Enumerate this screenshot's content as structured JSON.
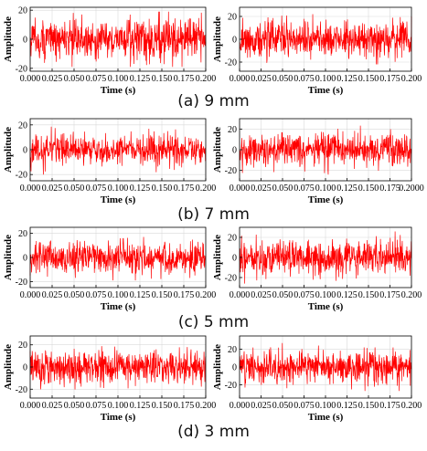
{
  "colors": {
    "signal": "#ff0000",
    "grid": "#d9d9d9",
    "axis": "#000000"
  },
  "rows": [
    {
      "caption": "(a) 9 mm",
      "panels": [
        {
          "ylabel": "Amplitude",
          "xlabel": "Time (s)",
          "y_ticks": [
            "20",
            "0",
            "-20"
          ],
          "x_ticks": [
            "0.000",
            "0.025",
            "0.050",
            "0.075",
            "0.100",
            "0.125",
            "0.150",
            "0.175",
            "0.200"
          ]
        },
        {
          "ylabel": "Amplitude",
          "xlabel": "Time (s)",
          "y_ticks": [
            "20",
            "0",
            "-20"
          ],
          "x_ticks": [
            "0.000",
            "0.025",
            "0.050",
            "0.075",
            "0.100",
            "0.125",
            "0.150",
            "0.175",
            "0.200"
          ]
        }
      ]
    },
    {
      "caption": "(b) 7 mm",
      "panels": [
        {
          "ylabel": "Amplitude",
          "xlabel": "Time (s)",
          "y_ticks": [
            "20",
            "0",
            "-20"
          ],
          "x_ticks": [
            "0.000",
            "0.025",
            "0.050",
            "0.075",
            "0.100",
            "0.125",
            "0.150",
            "0.175",
            "0.200"
          ]
        },
        {
          "ylabel": "Amplitude",
          "xlabel": "Time (s)",
          "y_ticks": [
            "20",
            "0",
            "-20"
          ],
          "x_ticks": [
            "0.000",
            "0.025",
            "0.050",
            "0.075",
            "0.100",
            "0.125",
            "0.150",
            "0.175",
            "0.2000"
          ]
        }
      ]
    },
    {
      "caption": "(c) 5 mm",
      "panels": [
        {
          "ylabel": "Amplitude",
          "xlabel": "Time (s)",
          "y_ticks": [
            "20",
            "0",
            "-20"
          ],
          "x_ticks": [
            "0.000",
            "0.025",
            "0.050",
            "0.075",
            "0.100",
            "0.125",
            "0.150",
            "0.175",
            "0.200"
          ]
        },
        {
          "ylabel": "Amplitude",
          "xlabel": "Time (s)",
          "y_ticks": [
            "20",
            "0",
            "-20"
          ],
          "x_ticks": [
            "0.000",
            "0.025",
            "0.050",
            "0.075",
            "0.100",
            "0.125",
            "0.150",
            "0.175",
            "0.200"
          ]
        }
      ]
    },
    {
      "caption": "(d) 3 mm",
      "panels": [
        {
          "ylabel": "Amplitude",
          "xlabel": "Time (s)",
          "y_ticks": [
            "20",
            "0",
            "-20"
          ],
          "x_ticks": [
            "0.000",
            "0.025",
            "0.050",
            "0.075",
            "0.100",
            "0.125",
            "0.150",
            "0.175",
            "0.200"
          ]
        },
        {
          "ylabel": "Amplitude",
          "xlabel": "Time (s)",
          "y_ticks": [
            "20",
            "0",
            "-20"
          ],
          "x_ticks": [
            "0.000",
            "0.025",
            "0.050",
            "0.075",
            "0.100",
            "0.125",
            "0.150",
            "0.175",
            "0.200"
          ]
        }
      ]
    }
  ],
  "chart_data": [
    {
      "type": "line",
      "panel": "(a) 9 mm left",
      "xlabel": "Time (s)",
      "ylabel": "Amplitude",
      "xlim": [
        0,
        0.2
      ],
      "ylim": [
        -22,
        22
      ],
      "grid": true,
      "signal": {
        "kind": "noise",
        "center": 0,
        "typical_amplitude": 7,
        "peak_amplitude": 19,
        "sample_count": 600
      }
    },
    {
      "type": "line",
      "panel": "(a) 9 mm right",
      "xlabel": "Time (s)",
      "ylabel": "Amplitude",
      "xlim": [
        0,
        0.2
      ],
      "ylim": [
        -28,
        28
      ],
      "grid": true,
      "signal": {
        "kind": "noise",
        "center": 0,
        "typical_amplitude": 8,
        "peak_amplitude": 22,
        "sample_count": 600
      }
    },
    {
      "type": "line",
      "panel": "(b) 7 mm left",
      "xlabel": "Time (s)",
      "ylabel": "Amplitude",
      "xlim": [
        0,
        0.2
      ],
      "ylim": [
        -25,
        25
      ],
      "grid": true,
      "signal": {
        "kind": "noise",
        "center": 0,
        "typical_amplitude": 6,
        "peak_amplitude": 20,
        "sample_count": 600
      }
    },
    {
      "type": "line",
      "panel": "(b) 7 mm right",
      "xlabel": "Time (s)",
      "ylabel": "Amplitude",
      "xlim": [
        0,
        0.2
      ],
      "ylim": [
        -30,
        30
      ],
      "grid": true,
      "signal": {
        "kind": "noise",
        "center": 0,
        "typical_amplitude": 8,
        "peak_amplitude": 24,
        "sample_count": 600
      }
    },
    {
      "type": "line",
      "panel": "(c) 5 mm left",
      "xlabel": "Time (s)",
      "ylabel": "Amplitude",
      "xlim": [
        0,
        0.2
      ],
      "ylim": [
        -25,
        25
      ],
      "grid": true,
      "signal": {
        "kind": "noise",
        "center": 0,
        "typical_amplitude": 7,
        "peak_amplitude": 19,
        "sample_count": 600
      }
    },
    {
      "type": "line",
      "panel": "(c) 5 mm right",
      "xlabel": "Time (s)",
      "ylabel": "Amplitude",
      "xlim": [
        0,
        0.2
      ],
      "ylim": [
        -30,
        30
      ],
      "grid": true,
      "signal": {
        "kind": "noise",
        "center": 0,
        "typical_amplitude": 9,
        "peak_amplitude": 26,
        "sample_count": 600
      }
    },
    {
      "type": "line",
      "panel": "(d) 3 mm left",
      "xlabel": "Time (s)",
      "ylabel": "Amplitude",
      "xlim": [
        0,
        0.2
      ],
      "ylim": [
        -28,
        28
      ],
      "grid": true,
      "signal": {
        "kind": "noise",
        "center": 0,
        "typical_amplitude": 8,
        "peak_amplitude": 24,
        "sample_count": 600
      }
    },
    {
      "type": "line",
      "panel": "(d) 3 mm right",
      "xlabel": "Time (s)",
      "ylabel": "Amplitude",
      "xlim": [
        0,
        0.2
      ],
      "ylim": [
        -35,
        35
      ],
      "grid": true,
      "signal": {
        "kind": "noise",
        "center": 0,
        "typical_amplitude": 9,
        "peak_amplitude": 27,
        "sample_count": 600
      }
    }
  ]
}
